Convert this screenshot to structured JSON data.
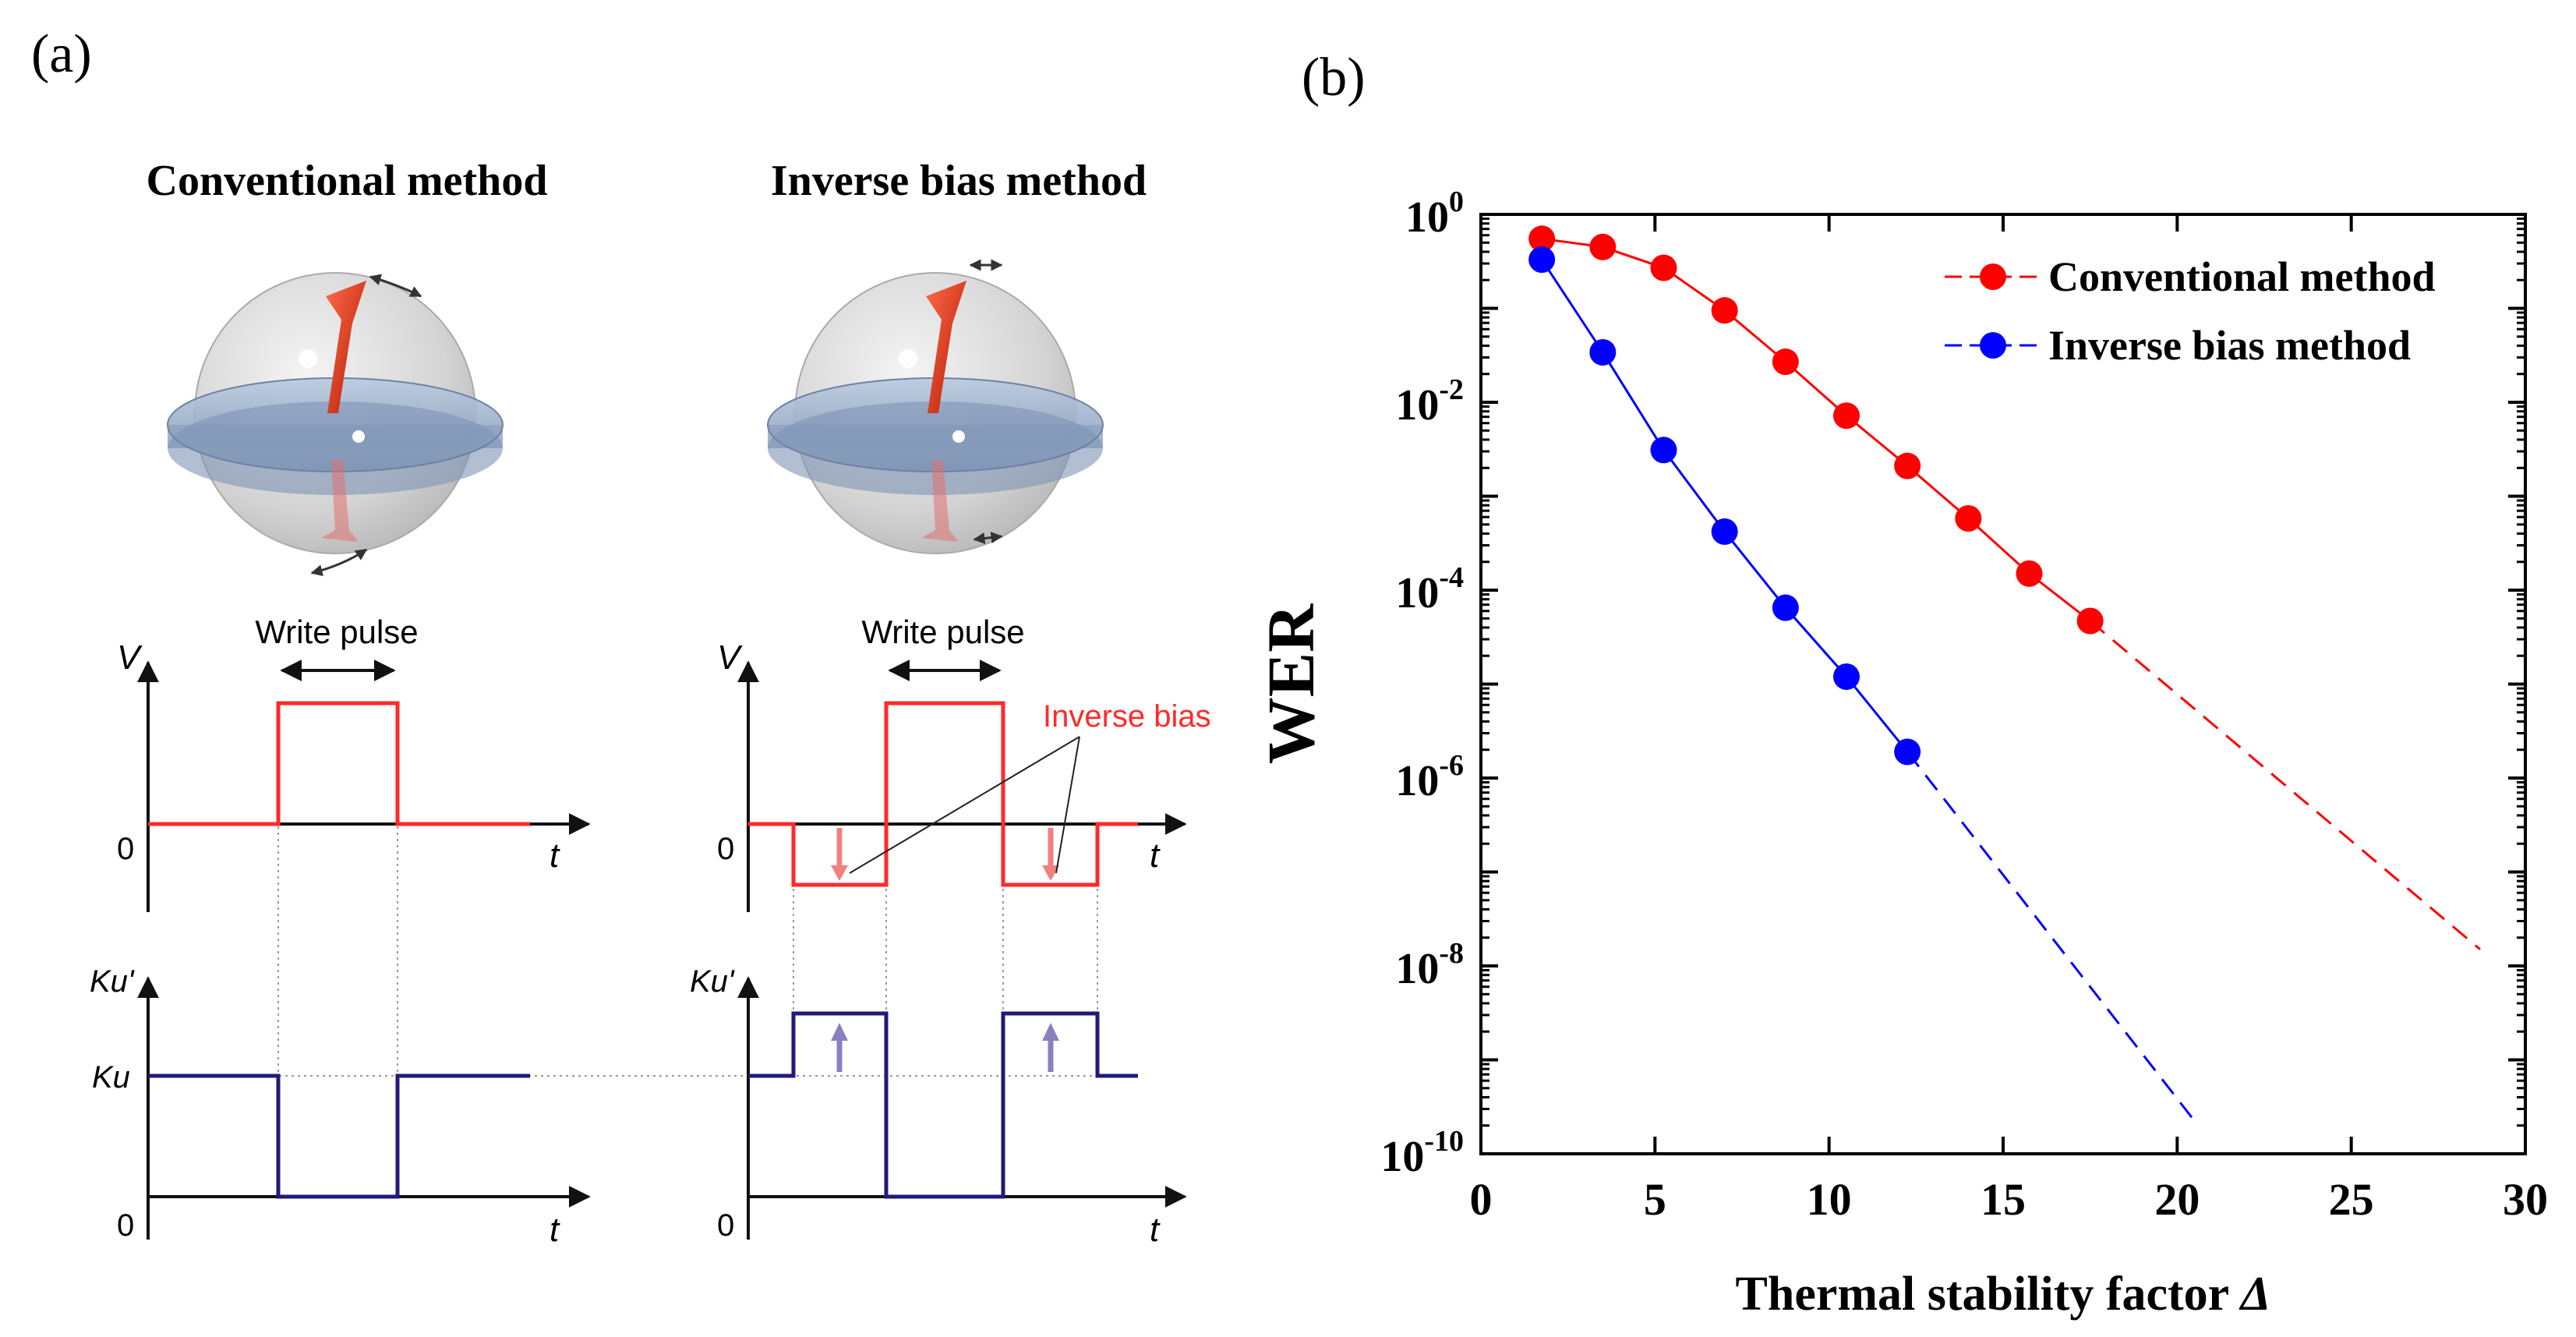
{
  "panel_a": {
    "label": "(a)",
    "col_left_title": "Conventional method",
    "col_right_title": "Inverse bias method",
    "write_pulse_left": "Write pulse",
    "write_pulse_right": "Write pulse",
    "inverse_bias_label": "Inverse bias",
    "v_axis_label": "V",
    "t_axis_label": "t",
    "zero_label": "0",
    "ku_prime_label": "Ku'",
    "ku_label": "Ku",
    "colors": {
      "voltage": "#ff2a2a",
      "anisotropy": "#1f1a7a",
      "bias_arrow": "#f08080",
      "ku_arrow": "#8a80c0"
    }
  },
  "panel_b": {
    "label": "(b)",
    "chart_data": {
      "type": "scatter",
      "ylabel": "WER",
      "xlabel": "Thermal stability factor Δ",
      "xlabel_text": "Thermal stability factor ",
      "xlabel_symbol": "Δ",
      "yscale": "log",
      "xlim": [
        0,
        30
      ],
      "ylim": [
        1e-10,
        1
      ],
      "xticks": [
        0,
        5,
        10,
        15,
        20,
        25,
        30
      ],
      "xtick_labels": [
        "0",
        "5",
        "10",
        "15",
        "20",
        "25",
        "30"
      ],
      "ytick_exponents": [
        0,
        -2,
        -4,
        -6,
        -8,
        -10
      ],
      "ytick_base": "10",
      "ytick_exp_labels": [
        "0",
        "-2",
        "-4",
        "-6",
        "-8",
        "-10"
      ],
      "legend_position": "top-right",
      "series": [
        {
          "name": "Conventional method",
          "color": "#ff0000",
          "x": [
            1.75,
            3.5,
            5.25,
            7.0,
            8.75,
            10.5,
            12.25,
            14.0,
            15.75,
            17.5
          ],
          "y": [
            0.55,
            0.45,
            0.27,
            0.095,
            0.027,
            0.0072,
            0.0021,
            0.00058,
            0.00015,
            4.7e-05
          ],
          "extrapolation": {
            "x": [
              17.5,
              28.7
            ],
            "y": [
              4.7e-05,
              1.5e-08
            ]
          }
        },
        {
          "name": "Inverse bias method",
          "color": "#0000ff",
          "x": [
            1.75,
            3.5,
            5.25,
            7.0,
            8.75,
            10.5,
            12.25
          ],
          "y": [
            0.33,
            0.034,
            0.0031,
            0.00042,
            6.5e-05,
            1.2e-05,
            1.9e-06
          ],
          "extrapolation": {
            "x": [
              12.25,
              20.6
            ],
            "y": [
              1.9e-06,
              2e-10
            ]
          }
        }
      ]
    }
  }
}
